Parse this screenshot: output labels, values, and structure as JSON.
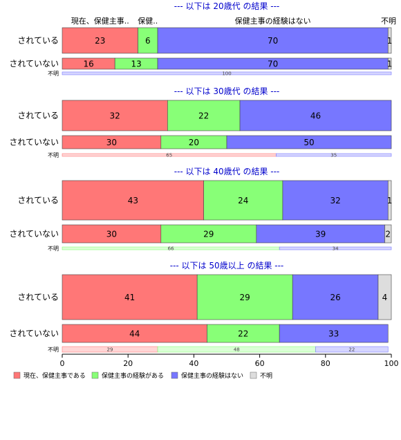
{
  "chart_data": {
    "type": "bar",
    "orientation": "horizontal",
    "stacked": true,
    "xlim": [
      0,
      100
    ],
    "x_ticks": [
      "0",
      "20",
      "40",
      "60",
      "80",
      "100"
    ],
    "column_headers": [
      "現在、保健主事..",
      "保健..",
      "保健主事の経験はない",
      "不明"
    ],
    "series_names": [
      "現在、保健主事である",
      "保健主事の経験がある",
      "保健主事の経験はない",
      "不明"
    ],
    "colors": [
      "#ff7777",
      "#88ff77",
      "#7777ff",
      "#dddddd"
    ],
    "legend_position": "bottom-left",
    "panels": [
      {
        "title": "--- 以下は 20歳代 の結果 ---",
        "rows": [
          {
            "label": "されている",
            "values": [
              23,
              6,
              70,
              1
            ]
          },
          {
            "label": "されていない",
            "values": [
              16,
              13,
              70,
              1
            ]
          },
          {
            "label": "不明",
            "values": [
              0,
              0,
              100,
              0
            ]
          }
        ]
      },
      {
        "title": "--- 以下は 30歳代 の結果 ---",
        "rows": [
          {
            "label": "されている",
            "values": [
              32,
              22,
              46,
              0
            ]
          },
          {
            "label": "されていない",
            "values": [
              30,
              20,
              50,
              0
            ]
          },
          {
            "label": "不明",
            "values": [
              65,
              0,
              35,
              0
            ]
          }
        ]
      },
      {
        "title": "--- 以下は 40歳代 の結果 ---",
        "rows": [
          {
            "label": "されている",
            "values": [
              43,
              24,
              32,
              1
            ]
          },
          {
            "label": "されていない",
            "values": [
              30,
              29,
              39,
              2
            ]
          },
          {
            "label": "不明",
            "values": [
              0,
              66,
              34,
              0
            ]
          }
        ]
      },
      {
        "title": "--- 以下は 50歳以上 の結果 ---",
        "rows": [
          {
            "label": "されている",
            "values": [
              41,
              29,
              26,
              4
            ]
          },
          {
            "label": "されていない",
            "values": [
              44,
              22,
              33,
              0
            ]
          },
          {
            "label": "不明",
            "values": [
              29,
              48,
              22,
              0
            ]
          }
        ]
      }
    ]
  }
}
